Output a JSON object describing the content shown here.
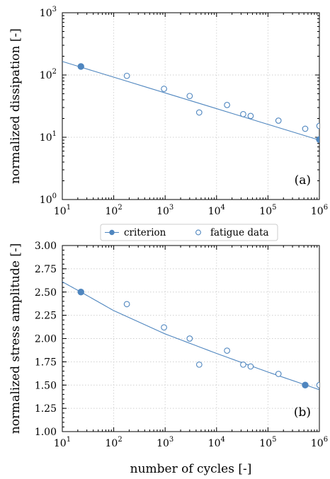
{
  "colors": {
    "series": "#4f86bf",
    "grid": "#cfcfcf"
  },
  "legend": {
    "entries": [
      {
        "label": "criterion",
        "marker": "line-filled-circle"
      },
      {
        "label": "fatigue data",
        "marker": "open-circle"
      }
    ]
  },
  "chart_data": [
    {
      "type": "scatter",
      "tag": "(a)",
      "xlabel": "",
      "ylabel": "normalized dissipation [-]",
      "xscale": "log",
      "yscale": "log",
      "xlim": [
        10,
        1000000
      ],
      "ylim": [
        1,
        1000
      ],
      "x_ticks": [
        {
          "base": "10",
          "exp": "1"
        },
        {
          "base": "10",
          "exp": "2"
        },
        {
          "base": "10",
          "exp": "3"
        },
        {
          "base": "10",
          "exp": "4"
        },
        {
          "base": "10",
          "exp": "5"
        },
        {
          "base": "10",
          "exp": "6"
        }
      ],
      "y_ticks": [
        {
          "base": "10",
          "exp": "0"
        },
        {
          "base": "10",
          "exp": "1"
        },
        {
          "base": "10",
          "exp": "2"
        },
        {
          "base": "10",
          "exp": "3"
        }
      ],
      "grid": true,
      "criterion_line": {
        "x": [
          10,
          1000000
        ],
        "y": [
          165,
          9
        ]
      },
      "criterion_points": [
        {
          "x": 23,
          "y": 137
        },
        {
          "x": 1000000,
          "y": 9.2
        }
      ],
      "fatigue_data": [
        {
          "x": 180,
          "y": 97
        },
        {
          "x": 950,
          "y": 60
        },
        {
          "x": 3000,
          "y": 46
        },
        {
          "x": 4600,
          "y": 25
        },
        {
          "x": 16000,
          "y": 33
        },
        {
          "x": 33000,
          "y": 23.5
        },
        {
          "x": 46000,
          "y": 22
        },
        {
          "x": 160000,
          "y": 18.5
        },
        {
          "x": 530000,
          "y": 13.7
        },
        {
          "x": 1000000,
          "y": 15.2
        }
      ]
    },
    {
      "type": "scatter",
      "tag": "(b)",
      "xlabel": "number of cycles [-]",
      "ylabel": "normalized stress amplitude [-]",
      "xscale": "log",
      "yscale": "linear",
      "xlim": [
        10,
        1000000
      ],
      "ylim": [
        1.0,
        3.0
      ],
      "x_ticks": [
        {
          "base": "10",
          "exp": "1"
        },
        {
          "base": "10",
          "exp": "2"
        },
        {
          "base": "10",
          "exp": "3"
        },
        {
          "base": "10",
          "exp": "4"
        },
        {
          "base": "10",
          "exp": "5"
        },
        {
          "base": "10",
          "exp": "6"
        }
      ],
      "y_ticks": [
        "1.00",
        "1.25",
        "1.50",
        "1.75",
        "2.00",
        "2.25",
        "2.50",
        "2.75",
        "3.00"
      ],
      "grid": true,
      "criterion_line": {
        "x": [
          10,
          23,
          100,
          1000,
          10000,
          100000,
          1000000
        ],
        "y": [
          2.61,
          2.5,
          2.3,
          2.05,
          1.84,
          1.64,
          1.45
        ]
      },
      "criterion_points": [
        {
          "x": 23,
          "y": 2.5
        },
        {
          "x": 530000,
          "y": 1.5
        }
      ],
      "fatigue_data": [
        {
          "x": 180,
          "y": 2.37
        },
        {
          "x": 950,
          "y": 2.12
        },
        {
          "x": 3000,
          "y": 2.0
        },
        {
          "x": 4600,
          "y": 1.72
        },
        {
          "x": 16000,
          "y": 1.87
        },
        {
          "x": 33000,
          "y": 1.72
        },
        {
          "x": 46000,
          "y": 1.7
        },
        {
          "x": 160000,
          "y": 1.62
        },
        {
          "x": 1000000,
          "y": 1.5
        }
      ]
    }
  ]
}
